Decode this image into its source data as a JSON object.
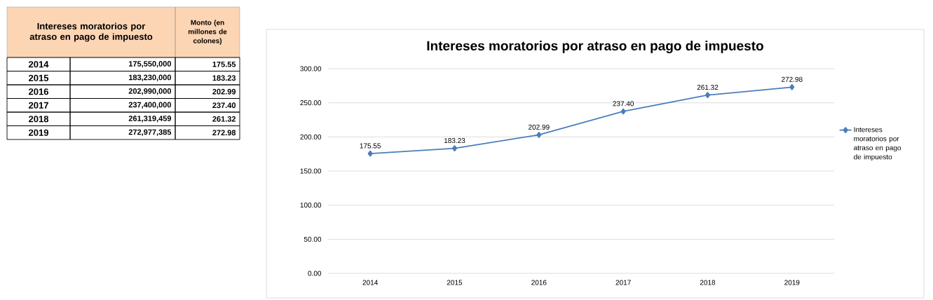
{
  "chart_data": {
    "type": "line",
    "title": "Intereses moratorios por atraso en pago de impuesto",
    "categories": [
      "2014",
      "2015",
      "2016",
      "2017",
      "2018",
      "2019"
    ],
    "series": [
      {
        "name": "Intereses moratorios por atraso en pago de impuesto",
        "color": "#4a7ebb",
        "values": [
          175.55,
          183.23,
          202.99,
          237.4,
          261.32,
          272.98
        ]
      }
    ],
    "ylim": [
      0,
      300
    ],
    "yticks": [
      {
        "value": 0,
        "label": "0.00"
      },
      {
        "value": 50,
        "label": "50.00"
      },
      {
        "value": 100,
        "label": "100.00"
      },
      {
        "value": 150,
        "label": "150.00"
      },
      {
        "value": 200,
        "label": "200.00"
      },
      {
        "value": 250,
        "label": "250.00"
      },
      {
        "value": 300,
        "label": "300.00"
      }
    ],
    "value_labels": [
      "175.55",
      "183.23",
      "202.99",
      "237.40",
      "261.32",
      "272.98"
    ],
    "grid": "y",
    "legend": "right",
    "marker": "diamond",
    "line_style": "solid",
    "annotations": [
      "Intereses moratorios por atraso en pago de impuesto",
      "Monto (en millones de colones)",
      "175,550,000",
      "183,230,000",
      "202,990,000",
      "237,400,000",
      "261,319,459",
      "272,977,385"
    ]
  }
}
